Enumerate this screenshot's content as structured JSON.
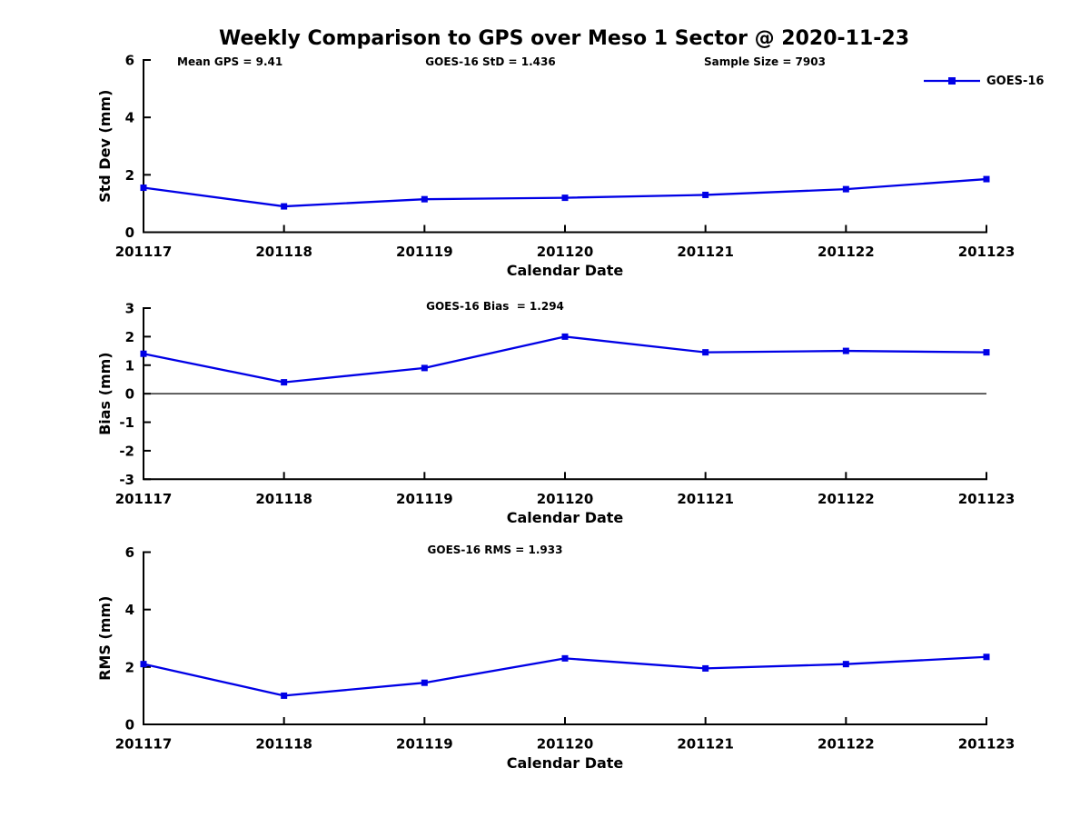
{
  "header": {
    "title": "Weekly Comparison to GPS over Meso 1 Sector @ 2020-11-23",
    "annotations": {
      "mean_gps": "Mean GPS = 9.41",
      "goes_std": "GOES-16 StD = 1.436",
      "sample_size": "Sample Size = 7903"
    }
  },
  "legend": {
    "label": "GOES-16",
    "position": "top-right",
    "marker": "filled-square-on-line"
  },
  "colors": {
    "line": "#0000E6",
    "axis": "#000000",
    "zero_line": "#000000",
    "text": "#000000",
    "background": "#FFFFFF"
  },
  "chart_data": [
    {
      "type": "line",
      "name": "Std Dev panel",
      "categories": [
        "201117",
        "201118",
        "201119",
        "201120",
        "201121",
        "201122",
        "201123"
      ],
      "series": [
        {
          "name": "GOES-16",
          "values": [
            1.55,
            0.9,
            1.15,
            1.2,
            1.3,
            1.5,
            1.85
          ]
        }
      ],
      "xlabel": "Calendar Date",
      "ylabel": "Std Dev (mm)",
      "ylim": [
        0,
        6
      ],
      "yticks": [
        0,
        2,
        4,
        6
      ],
      "annotation": "",
      "zero_line": false,
      "grid": false
    },
    {
      "type": "line",
      "name": "Bias panel",
      "categories": [
        "201117",
        "201118",
        "201119",
        "201120",
        "201121",
        "201122",
        "201123"
      ],
      "series": [
        {
          "name": "GOES-16",
          "values": [
            1.4,
            0.4,
            0.9,
            2.0,
            1.45,
            1.5,
            1.45
          ]
        }
      ],
      "xlabel": "Calendar Date",
      "ylabel": "Bias (mm)",
      "ylim": [
        -3,
        3
      ],
      "yticks": [
        3,
        2,
        1,
        0,
        -1,
        -2,
        -3
      ],
      "annotation": "GOES-16 Bias  = 1.294",
      "zero_line": true,
      "grid": false
    },
    {
      "type": "line",
      "name": "RMS panel",
      "categories": [
        "201117",
        "201118",
        "201119",
        "201120",
        "201121",
        "201122",
        "201123"
      ],
      "series": [
        {
          "name": "GOES-16",
          "values": [
            2.1,
            1.0,
            1.45,
            2.3,
            1.95,
            2.1,
            2.35
          ]
        }
      ],
      "xlabel": "Calendar Date",
      "ylabel": "RMS (mm)",
      "ylim": [
        0,
        6
      ],
      "yticks": [
        0,
        2,
        4,
        6
      ],
      "annotation": "GOES-16 RMS = 1.933",
      "zero_line": false,
      "grid": false
    }
  ]
}
